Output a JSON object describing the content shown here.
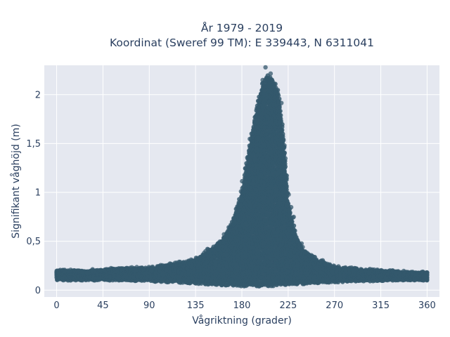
{
  "chart_data": {
    "type": "scatter",
    "title_lines": [
      "År 1979 - 2019",
      "Koordinat (Sweref 99 TM): E 339443, N 6311041"
    ],
    "xlabel": "Vågriktning (grader)",
    "ylabel": "Signifikant våghöjd (m)",
    "xlim": [
      -12,
      372
    ],
    "ylim": [
      -0.07,
      2.3
    ],
    "xticks": [
      0,
      45,
      90,
      135,
      180,
      225,
      270,
      315,
      360
    ],
    "xtick_labels": [
      "0",
      "45",
      "90",
      "135",
      "180",
      "225",
      "270",
      "315",
      "360"
    ],
    "yticks": [
      0,
      0.5,
      1,
      1.5,
      2
    ],
    "ytick_labels": [
      "0",
      "0,5",
      "1",
      "1,5",
      "2"
    ],
    "grid": true,
    "plot_background": "#e5e8f0",
    "grid_color": "#ffffff",
    "marker_color": "#34586c",
    "envelope": {
      "direction": [
        0,
        30,
        60,
        90,
        110,
        130,
        145,
        160,
        170,
        180,
        188,
        195,
        200,
        205,
        210,
        215,
        220,
        225,
        232,
        240,
        255,
        270,
        300,
        330,
        360
      ],
      "max_height": [
        0.2,
        0.2,
        0.22,
        0.23,
        0.26,
        0.3,
        0.38,
        0.5,
        0.68,
        1.0,
        1.5,
        1.9,
        2.12,
        2.2,
        2.15,
        2.05,
        1.62,
        0.9,
        0.58,
        0.4,
        0.3,
        0.24,
        0.21,
        0.19,
        0.18
      ],
      "min_height": [
        0.1,
        0.1,
        0.1,
        0.09,
        0.08,
        0.07,
        0.06,
        0.05,
        0.05,
        0.04,
        0.04,
        0.04,
        0.04,
        0.04,
        0.04,
        0.05,
        0.05,
        0.06,
        0.06,
        0.06,
        0.07,
        0.08,
        0.09,
        0.1,
        0.1
      ]
    }
  }
}
